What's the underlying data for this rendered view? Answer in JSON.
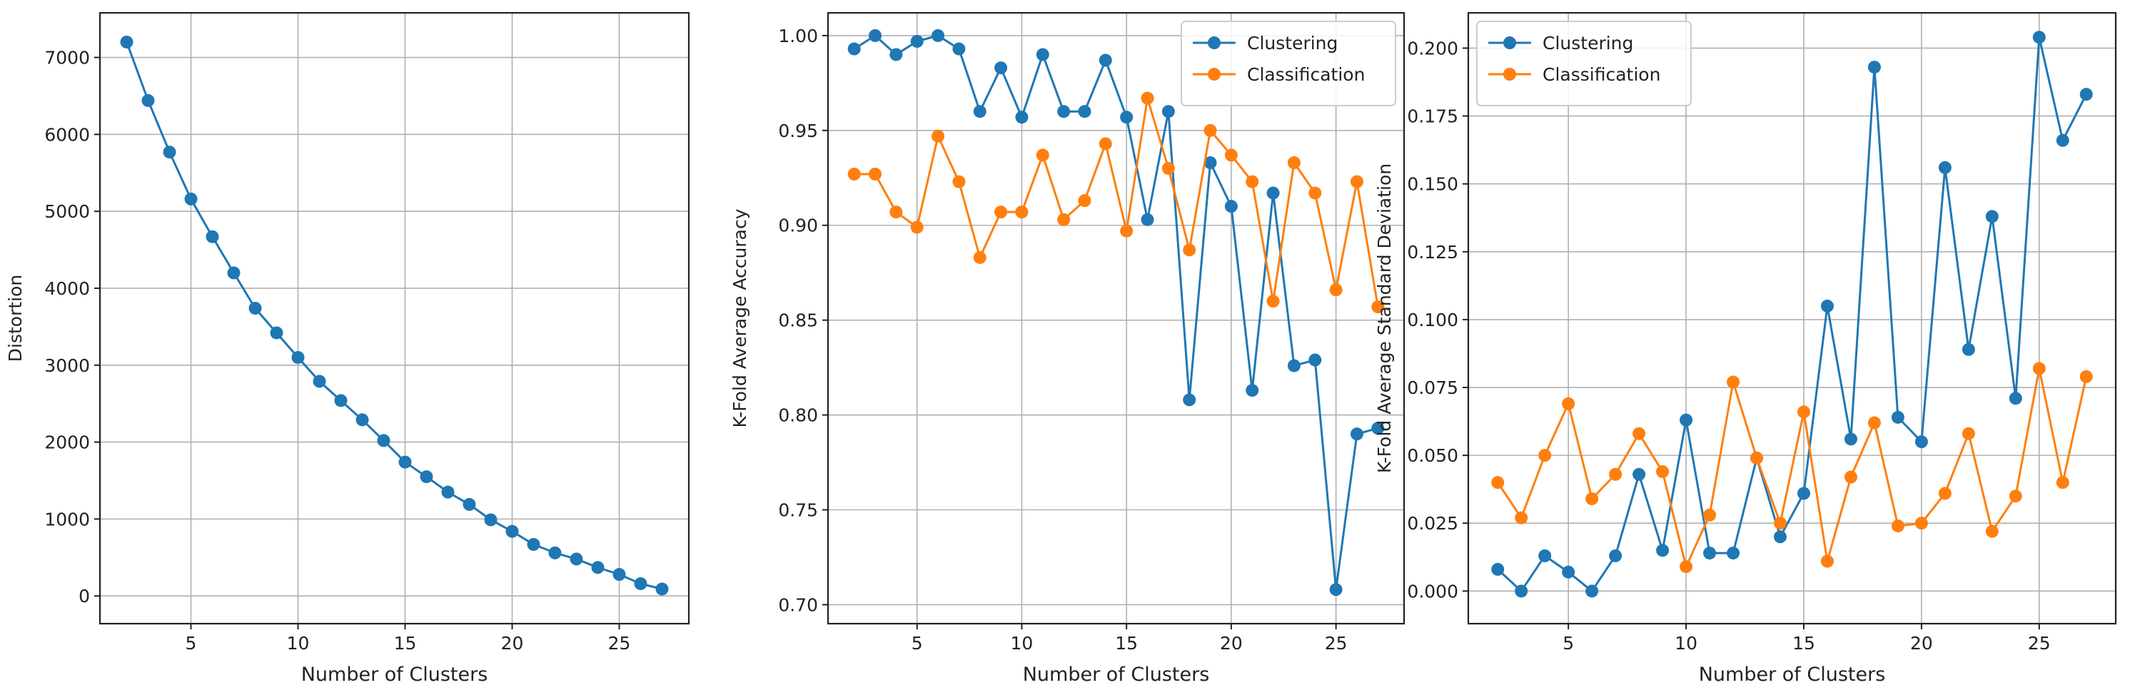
{
  "chart_data": [
    {
      "type": "line",
      "title": "",
      "xlabel": "Number of Clusters",
      "ylabel": "Distortion",
      "xlim": [
        0.75,
        28.25
      ],
      "ylim": [
        -360,
        7580
      ],
      "xticks": [
        5,
        10,
        15,
        20,
        25
      ],
      "xtick_labels": [
        "5",
        "10",
        "15",
        "20",
        "25"
      ],
      "yticks": [
        0,
        1000,
        2000,
        3000,
        4000,
        5000,
        6000,
        7000
      ],
      "ytick_labels": [
        "0",
        "1000",
        "2000",
        "3000",
        "4000",
        "5000",
        "6000",
        "7000"
      ],
      "grid": true,
      "legend": "none",
      "x": [
        2,
        3,
        4,
        5,
        6,
        7,
        8,
        9,
        10,
        11,
        12,
        13,
        14,
        15,
        16,
        17,
        18,
        19,
        20,
        21,
        22,
        23,
        24,
        25,
        26,
        27
      ],
      "series": [
        {
          "color": "#1f77b4",
          "values": [
            7200,
            6440,
            5770,
            5160,
            4670,
            4200,
            3740,
            3420,
            3100,
            2790,
            2540,
            2290,
            2020,
            1740,
            1550,
            1350,
            1190,
            990,
            840,
            670,
            560,
            480,
            370,
            280,
            160,
            90
          ]
        }
      ]
    },
    {
      "type": "line",
      "title": "",
      "xlabel": "Number of Clusters",
      "ylabel": "K-Fold  Average Accuracy",
      "xlim": [
        0.75,
        28.25
      ],
      "ylim": [
        0.69,
        1.012
      ],
      "xticks": [
        5,
        10,
        15,
        20,
        25
      ],
      "xtick_labels": [
        "5",
        "10",
        "15",
        "20",
        "25"
      ],
      "yticks": [
        0.7,
        0.75,
        0.8,
        0.85,
        0.9,
        0.95,
        1.0
      ],
      "ytick_labels": [
        "0.70",
        "0.75",
        "0.80",
        "0.85",
        "0.90",
        "0.95",
        "1.00"
      ],
      "grid": true,
      "legend": "top-right",
      "x": [
        2,
        3,
        4,
        5,
        6,
        7,
        8,
        9,
        10,
        11,
        12,
        13,
        14,
        15,
        16,
        17,
        18,
        19,
        20,
        21,
        22,
        23,
        24,
        25,
        26,
        27
      ],
      "series": [
        {
          "name": "Clustering",
          "color": "#1f77b4",
          "values": [
            0.993,
            1.0,
            0.99,
            0.997,
            1.0,
            0.993,
            0.96,
            0.983,
            0.957,
            0.99,
            0.96,
            0.96,
            0.987,
            0.957,
            0.903,
            0.96,
            0.808,
            0.933,
            0.91,
            0.813,
            0.917,
            0.826,
            0.829,
            0.708,
            0.79,
            0.793
          ]
        },
        {
          "name": "Classification",
          "color": "#ff7f0e",
          "values": [
            0.927,
            0.927,
            0.907,
            0.899,
            0.947,
            0.923,
            0.883,
            0.907,
            0.907,
            0.937,
            0.903,
            0.913,
            0.943,
            0.897,
            0.967,
            0.93,
            0.887,
            0.95,
            0.937,
            0.923,
            0.86,
            0.933,
            0.917,
            0.866,
            0.923,
            0.857
          ]
        }
      ]
    },
    {
      "type": "line",
      "title": "",
      "xlabel": "Number of Clusters",
      "ylabel": "K-Fold  Average  Standard  Deviation",
      "xlim": [
        0.75,
        28.25
      ],
      "ylim": [
        -0.012,
        0.213
      ],
      "xticks": [
        5,
        10,
        15,
        20,
        25
      ],
      "xtick_labels": [
        "5",
        "10",
        "15",
        "20",
        "25"
      ],
      "yticks": [
        0.0,
        0.025,
        0.05,
        0.075,
        0.1,
        0.125,
        0.15,
        0.175,
        0.2
      ],
      "ytick_labels": [
        "0.000",
        "0.025",
        "0.050",
        "0.075",
        "0.100",
        "0.125",
        "0.150",
        "0.175",
        "0.200"
      ],
      "grid": true,
      "legend": "top-left",
      "x": [
        2,
        3,
        4,
        5,
        6,
        7,
        8,
        9,
        10,
        11,
        12,
        13,
        14,
        15,
        16,
        17,
        18,
        19,
        20,
        21,
        22,
        23,
        24,
        25,
        26,
        27
      ],
      "series": [
        {
          "name": "Clustering",
          "color": "#1f77b4",
          "values": [
            0.008,
            0.0,
            0.013,
            0.007,
            0.0,
            0.013,
            0.043,
            0.015,
            0.063,
            0.014,
            0.014,
            0.049,
            0.02,
            0.036,
            0.105,
            0.056,
            0.193,
            0.064,
            0.055,
            0.156,
            0.089,
            0.138,
            0.071,
            0.204,
            0.166,
            0.183
          ]
        },
        {
          "name": "Classification",
          "color": "#ff7f0e",
          "values": [
            0.04,
            0.027,
            0.05,
            0.069,
            0.034,
            0.043,
            0.058,
            0.044,
            0.009,
            0.028,
            0.077,
            0.049,
            0.025,
            0.066,
            0.011,
            0.042,
            0.062,
            0.024,
            0.025,
            0.036,
            0.058,
            0.022,
            0.035,
            0.082,
            0.04,
            0.079
          ]
        }
      ]
    }
  ]
}
